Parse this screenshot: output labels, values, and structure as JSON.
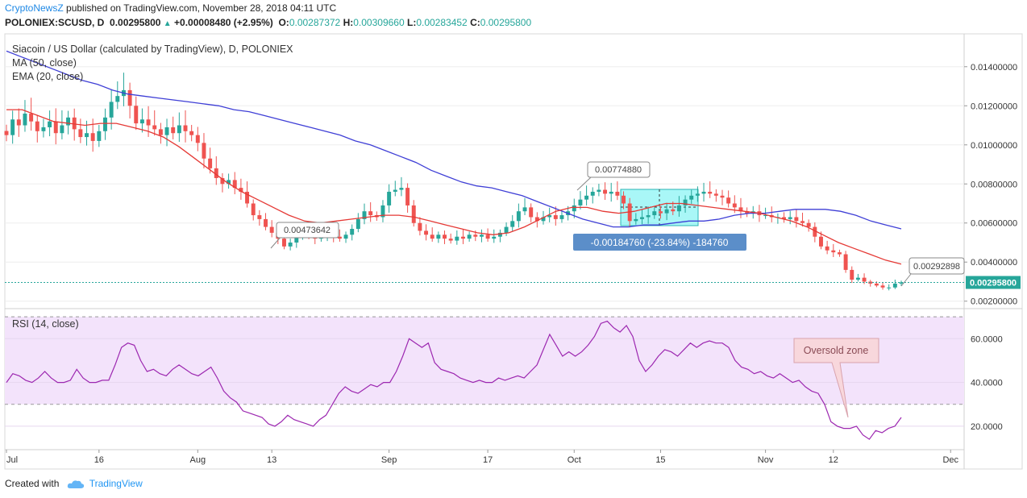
{
  "header": {
    "brand": "CryptoNewsZ",
    "published": "published on TradingView.com, November 28, 2018 04:11 UTC"
  },
  "ticker": {
    "symbol": "POLONIEX:SCUSD, D",
    "price": "0.00295800",
    "change": "+0.00008480 (+2.95%)",
    "o_label": "O:",
    "o": "0.00287372",
    "h_label": "H:",
    "h": "0.00309660",
    "l_label": "L:",
    "l": "0.00283452",
    "c_label": "C:",
    "c": "0.00295800"
  },
  "footer": {
    "created": "Created with",
    "tv": "TradingView"
  },
  "colors": {
    "up": "#26a69a",
    "down": "#ef5350",
    "ma": "#3f3fd6",
    "ema": "#e53935",
    "rsi": "#9c27b0",
    "rsi_band": "#f3e3fb",
    "box": "#62f0f0",
    "oversold": "#f8d7dc"
  },
  "chart_data": [
    {
      "type": "candlestick",
      "title": "Siacoin / US Dollar (calculated by TradingView), D, POLONIEX",
      "legend": [
        "MA (50, close)",
        "EMA (20, close)"
      ],
      "x_ticks": [
        "Jul",
        "16",
        "Aug",
        "13",
        "Sep",
        "17",
        "Oct",
        "15",
        "Nov",
        "12",
        "Dec"
      ],
      "y_ticks": [
        "0.00200000",
        "0.00400000",
        "0.00600000",
        "0.00800000",
        "0.01000000",
        "0.01200000",
        "0.01400000"
      ],
      "ylim": [
        0.0017,
        0.0156
      ],
      "x_start": "2018-07-01",
      "close": [
        0.0105,
        0.0113,
        0.011,
        0.0116,
        0.0112,
        0.0107,
        0.0109,
        0.0112,
        0.0106,
        0.011,
        0.0114,
        0.0108,
        0.0104,
        0.0106,
        0.0102,
        0.0107,
        0.0114,
        0.0122,
        0.0125,
        0.0128,
        0.012,
        0.0111,
        0.0113,
        0.011,
        0.0108,
        0.0105,
        0.0109,
        0.0106,
        0.011,
        0.0107,
        0.0105,
        0.0101,
        0.0093,
        0.0088,
        0.0083,
        0.008,
        0.0082,
        0.0078,
        0.0076,
        0.007,
        0.0064,
        0.0062,
        0.0058,
        0.0055,
        0.0052,
        0.0048,
        0.005,
        0.0053,
        0.0055,
        0.0054,
        0.0052,
        0.0053,
        0.0055,
        0.0053,
        0.0052,
        0.0054,
        0.0057,
        0.0062,
        0.0066,
        0.0064,
        0.0063,
        0.0069,
        0.0076,
        0.0077,
        0.0078,
        0.0069,
        0.006,
        0.0056,
        0.0054,
        0.0052,
        0.0054,
        0.0052,
        0.0051,
        0.0053,
        0.0052,
        0.0054,
        0.0053,
        0.0054,
        0.0052,
        0.0053,
        0.0055,
        0.0058,
        0.0061,
        0.0066,
        0.0068,
        0.0063,
        0.0061,
        0.0063,
        0.0064,
        0.0062,
        0.0064,
        0.0066,
        0.0069,
        0.0072,
        0.0074,
        0.0076,
        0.0077,
        0.0075,
        0.0076,
        0.0074,
        0.007,
        0.0061,
        0.0062,
        0.0063,
        0.0064,
        0.0066,
        0.0065,
        0.0067,
        0.0066,
        0.0069,
        0.0072,
        0.0074,
        0.0075,
        0.0076,
        0.0075,
        0.0074,
        0.0073,
        0.007,
        0.0068,
        0.0066,
        0.0065,
        0.0066,
        0.0064,
        0.0064,
        0.0063,
        0.0063,
        0.0062,
        0.0063,
        0.0061,
        0.006,
        0.0058,
        0.0053,
        0.0048,
        0.0046,
        0.0045,
        0.0044,
        0.0036,
        0.0031,
        0.0032,
        0.003,
        0.0029,
        0.0028,
        0.0027,
        0.0027,
        0.0029,
        0.00296
      ],
      "ma50": [
        0.0148,
        0.0145,
        0.0142,
        0.0139,
        0.0136,
        0.0133,
        0.0131,
        0.0128,
        0.0126,
        0.0125,
        0.0124,
        0.0123,
        0.0122,
        0.0121,
        0.012,
        0.0118,
        0.0117,
        0.0115,
        0.0113,
        0.0111,
        0.0109,
        0.0107,
        0.0105,
        0.0102,
        0.01,
        0.0097,
        0.0094,
        0.0091,
        0.0087,
        0.0084,
        0.0081,
        0.0079,
        0.0078,
        0.0076,
        0.0074,
        0.0071,
        0.0068,
        0.0065,
        0.0062,
        0.006,
        0.0058,
        0.0058,
        0.0059,
        0.0059,
        0.006,
        0.0061,
        0.0061,
        0.0062,
        0.0064,
        0.0065,
        0.0065,
        0.0066,
        0.0067,
        0.0067,
        0.0067,
        0.0066,
        0.0064,
        0.0061,
        0.0059,
        0.0057
      ],
      "ema20": [
        0.0118,
        0.0118,
        0.0115,
        0.0112,
        0.0111,
        0.011,
        0.0111,
        0.0111,
        0.0109,
        0.0107,
        0.0104,
        0.0099,
        0.0093,
        0.0087,
        0.0081,
        0.0076,
        0.0072,
        0.0068,
        0.0064,
        0.0061,
        0.006,
        0.0061,
        0.0062,
        0.0063,
        0.0064,
        0.0064,
        0.0063,
        0.0061,
        0.0059,
        0.0057,
        0.0055,
        0.0054,
        0.0055,
        0.0058,
        0.0062,
        0.0066,
        0.0068,
        0.0068,
        0.0066,
        0.0065,
        0.0066,
        0.0068,
        0.007,
        0.007,
        0.0069,
        0.0068,
        0.0067,
        0.0066,
        0.0065,
        0.0063,
        0.0061,
        0.0058,
        0.0054,
        0.005,
        0.0047,
        0.0044,
        0.0041,
        0.0039
      ],
      "annotations": [
        {
          "label": "0.00473642",
          "kind": "price-callout"
        },
        {
          "label": "0.00774880",
          "kind": "price-callout"
        },
        {
          "label": "0.00292898",
          "kind": "price-callout"
        },
        {
          "label": "-0.00184760 (-23.84%) -184760",
          "kind": "measure-range"
        }
      ],
      "last_price_label": "0.00295800"
    },
    {
      "type": "line",
      "title": "RSI (14, close)",
      "y_ticks": [
        "20.0000",
        "40.0000",
        "60.0000"
      ],
      "ylim": [
        10,
        73
      ],
      "band": [
        30,
        70
      ],
      "values": [
        40,
        44,
        43,
        41,
        40,
        42,
        45,
        42,
        40,
        40,
        41,
        46,
        42,
        40,
        40,
        41,
        41,
        48,
        56,
        58,
        57,
        50,
        45,
        46,
        44,
        43,
        46,
        48,
        46,
        44,
        43,
        45,
        47,
        42,
        36,
        33,
        31,
        27,
        26,
        25,
        24,
        21,
        20,
        22,
        25,
        23,
        22,
        21,
        20,
        23,
        25,
        30,
        35,
        38,
        36,
        35,
        37,
        39,
        38,
        40,
        40,
        45,
        52,
        60,
        58,
        56,
        58,
        49,
        46,
        45,
        44,
        42,
        41,
        40,
        41,
        40,
        40,
        42,
        41,
        42,
        43,
        42,
        45,
        48,
        55,
        62,
        57,
        52,
        54,
        52,
        54,
        57,
        61,
        67,
        68,
        65,
        63,
        66,
        61,
        50,
        45,
        48,
        52,
        55,
        54,
        52,
        55,
        58,
        56,
        58,
        59,
        58,
        58,
        56,
        50,
        47,
        46,
        44,
        45,
        43,
        42,
        44,
        42,
        40,
        41,
        38,
        36,
        35,
        30,
        22,
        20,
        19,
        19,
        20,
        16,
        14,
        18,
        17,
        19,
        20,
        24
      ],
      "annotation": "Oversold zone"
    }
  ]
}
